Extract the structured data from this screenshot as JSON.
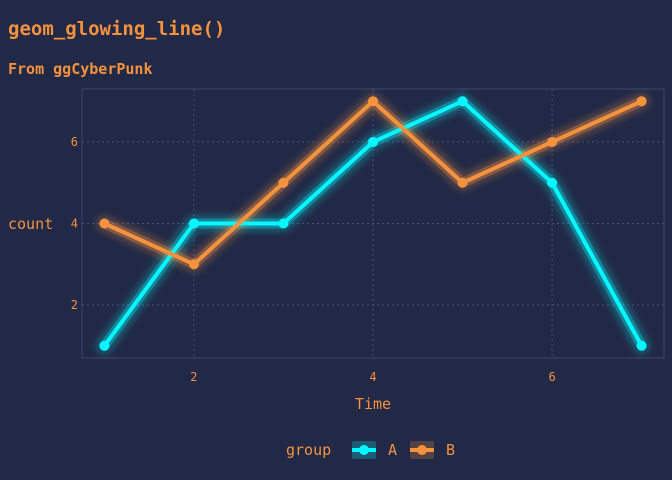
{
  "chart_data": {
    "type": "line",
    "title": "geom_glowing_line()",
    "subtitle": "From ggCyberPunk",
    "xlabel": "Time",
    "ylabel": "count",
    "x": [
      1,
      2,
      3,
      4,
      5,
      6,
      7
    ],
    "xlim": [
      0.75,
      7.25
    ],
    "ylim": [
      0.7,
      7.3
    ],
    "xticks": [
      2,
      4,
      6
    ],
    "yticks": [
      2,
      4,
      6
    ],
    "grid": true,
    "legend_position": "bottom",
    "legend_title": "group",
    "series": [
      {
        "name": "A",
        "values": [
          1,
          4,
          4,
          6,
          7,
          5,
          1
        ],
        "color": "#08F7FE"
      },
      {
        "name": "B",
        "values": [
          4,
          3,
          5,
          7,
          5,
          6,
          7
        ],
        "color": "#F5923E"
      }
    ]
  },
  "colors": {
    "background": "#212946",
    "panel_border": "#3F4866",
    "grid": "#4A5275",
    "text": "#F5923E"
  }
}
